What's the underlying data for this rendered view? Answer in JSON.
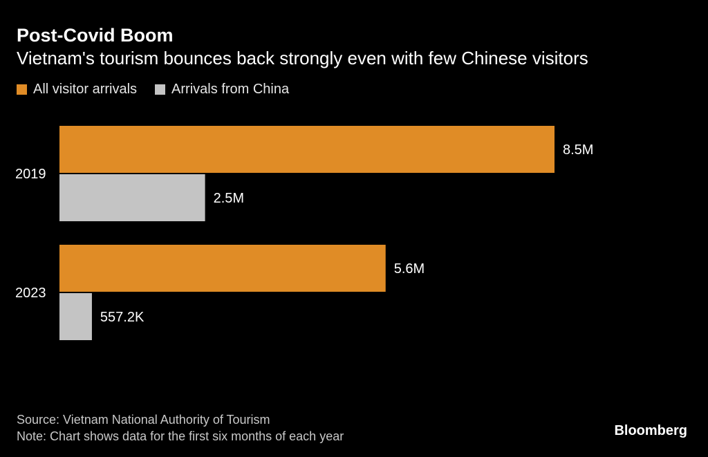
{
  "header": {
    "title": "Post-Covid Boom",
    "subtitle": "Vietnam's tourism bounces back strongly even with few Chinese visitors"
  },
  "legend": [
    {
      "label": "All visitor arrivals",
      "color": "#e08c26"
    },
    {
      "label": "Arrivals from China",
      "color": "#c4c4c4"
    }
  ],
  "chart_data": {
    "type": "bar",
    "orientation": "horizontal",
    "categories": [
      "2019",
      "2023"
    ],
    "series": [
      {
        "name": "All visitor arrivals",
        "color": "#e08c26",
        "values": [
          8.5,
          5.6
        ],
        "labels": [
          "8.5M",
          "5.6M"
        ]
      },
      {
        "name": "Arrivals from China",
        "color": "#c4c4c4",
        "values": [
          2.5,
          0.5572
        ],
        "labels": [
          "2.5M",
          "557.2K"
        ]
      }
    ],
    "value_unit": "millions of arrivals",
    "xlim": [
      0,
      8.5
    ],
    "grid": false,
    "legend_position": "top-left"
  },
  "footer": {
    "source": "Source: Vietnam National Authority of Tourism",
    "note": "Note: Chart shows data for the first six months of each year"
  },
  "brand": "Bloomberg"
}
